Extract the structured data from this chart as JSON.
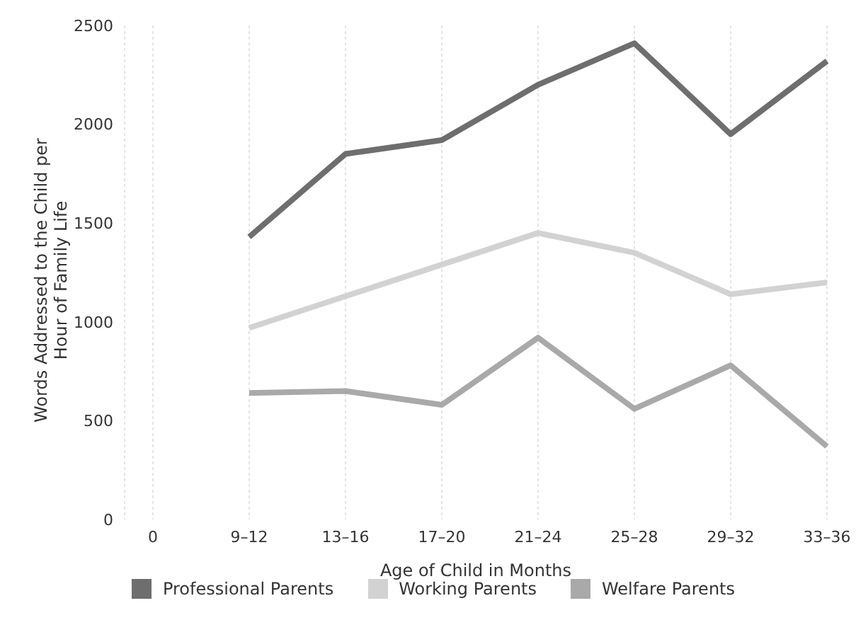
{
  "chart_data": {
    "type": "line",
    "xlabel": "Age of Child in Months",
    "ylabel": "Words Addressed to the Child per Hour of Family Life",
    "categories": [
      "0",
      "9–12",
      "13–16",
      "17–20",
      "21–24",
      "25–28",
      "29–32",
      "33–36"
    ],
    "series": [
      {
        "name": "Professional Parents",
        "color": "#6e6e6e",
        "values": [
          null,
          1430,
          1850,
          1920,
          2200,
          2410,
          1950,
          2320
        ]
      },
      {
        "name": "Working Parents",
        "color": "#d2d2d2",
        "values": [
          null,
          970,
          1130,
          1290,
          1450,
          1350,
          1140,
          1200
        ]
      },
      {
        "name": "Welfare Parents",
        "color": "#a9a9a9",
        "values": [
          null,
          640,
          650,
          580,
          920,
          560,
          780,
          370
        ]
      }
    ],
    "ylim": [
      0,
      2500
    ],
    "yticks": [
      0,
      500,
      1000,
      1500,
      2000,
      2500
    ],
    "grid": "x",
    "legend": "bottom",
    "marker": "none",
    "line_style": "solid"
  }
}
